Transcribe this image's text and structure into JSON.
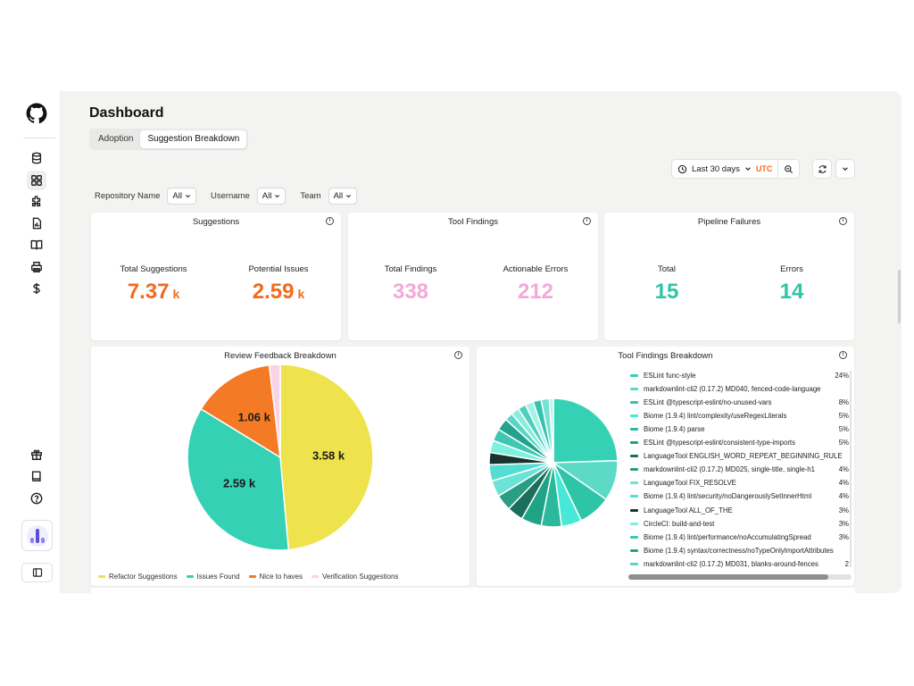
{
  "page": {
    "title": "Dashboard"
  },
  "tabs": [
    {
      "label": "Adoption",
      "active": false
    },
    {
      "label": "Suggestion Breakdown",
      "active": true
    }
  ],
  "toolbar": {
    "range_label": "Last 30 days",
    "timezone": "UTC"
  },
  "filters": [
    {
      "label": "Repository Name",
      "value": "All"
    },
    {
      "label": "Username",
      "value": "All"
    },
    {
      "label": "Team",
      "value": "All"
    }
  ],
  "sidebar": {
    "top_icons": [
      "database-icon",
      "dashboard-grid-icon",
      "puzzle-icon",
      "report-icon",
      "book-open-icon",
      "printer-icon",
      "dollar-icon"
    ],
    "bottom_icons": [
      "gift-icon",
      "book-icon",
      "help-icon"
    ]
  },
  "cards": {
    "suggestions": {
      "title": "Suggestions",
      "metrics": [
        {
          "label": "Total Suggestions",
          "value": "7.37",
          "unit": "k",
          "color": "#f26b1d"
        },
        {
          "label": "Potential Issues",
          "value": "2.59",
          "unit": "k",
          "color": "#f26b1d"
        }
      ]
    },
    "tool_findings": {
      "title": "Tool Findings",
      "metrics": [
        {
          "label": "Total Findings",
          "value": "338",
          "unit": "",
          "color": "#f5a8d8"
        },
        {
          "label": "Actionable Errors",
          "value": "212",
          "unit": "",
          "color": "#f5a8d8"
        }
      ]
    },
    "pipeline_failures": {
      "title": "Pipeline Failures",
      "metrics": [
        {
          "label": "Total",
          "value": "15",
          "unit": "",
          "color": "#2ec4a6"
        },
        {
          "label": "Errors",
          "value": "14",
          "unit": "",
          "color": "#2ec4a6"
        }
      ]
    },
    "review_feedback": {
      "title": "Review Feedback Breakdown"
    },
    "tool_breakdown": {
      "title": "Tool Findings Breakdown"
    }
  },
  "chart_data": [
    {
      "type": "pie",
      "title": "Review Feedback Breakdown",
      "slices": [
        {
          "name": "Refactor Suggestions",
          "value": 3580,
          "label": "3.58 k",
          "color": "#eee34c"
        },
        {
          "name": "Issues Found",
          "value": 2590,
          "label": "2.59 k",
          "color": "#35d1b4"
        },
        {
          "name": "Nice to haves",
          "value": 1060,
          "label": "1.06 k",
          "color": "#f47a25"
        },
        {
          "name": "Verification Suggestions",
          "value": 140,
          "label": "",
          "color": "#f9d3e6"
        }
      ],
      "legend": "bottom-left"
    },
    {
      "type": "pie",
      "title": "Tool Findings Breakdown",
      "legend": "right",
      "slices": [
        {
          "name": "ESLint func-style",
          "pct": "24%",
          "value": 24,
          "color": "#35d1b4"
        },
        {
          "name": "markdownlint-cli2 (0.17.2) MD040, fenced-code-language",
          "pct": "",
          "value": 10,
          "color": "#5cdac5"
        },
        {
          "name": "ESLint @typescript-eslint/no-unused-vars",
          "pct": "8%",
          "value": 8,
          "color": "#2ec4a6"
        },
        {
          "name": "Biome (1.9.4) lint/complexity/useRegexLiterals",
          "pct": "5%",
          "value": 5,
          "color": "#47e8d7"
        },
        {
          "name": "Biome (1.9.4) parse",
          "pct": "5%",
          "value": 5,
          "color": "#2bb89b"
        },
        {
          "name": "ESLint @typescript-eslint/consistent-type-imports",
          "pct": "5%",
          "value": 5,
          "color": "#1fa386"
        },
        {
          "name": "LanguageTool ENGLISH_WORD_REPEAT_BEGINNING_RULE",
          "pct": "",
          "value": 4,
          "color": "#1b6e5a"
        },
        {
          "name": "markdownlint-cli2 (0.17.2) MD025, single-title, single-h1",
          "pct": "4%",
          "value": 4,
          "color": "#2a9d85"
        },
        {
          "name": "LanguageTool FIX_RESOLVE",
          "pct": "4%",
          "value": 4,
          "color": "#6be3d6"
        },
        {
          "name": "Biome (1.9.4) lint/security/noDangerouslySetInnerHtml",
          "pct": "4%",
          "value": 4,
          "color": "#54ddd3"
        },
        {
          "name": "LanguageTool ALL_OF_THE",
          "pct": "3%",
          "value": 3,
          "color": "#17352f"
        },
        {
          "name": "CircleCI: build-and-test",
          "pct": "3%",
          "value": 3,
          "color": "#7ef0e0"
        },
        {
          "name": "Biome (1.9.4) lint/performance/noAccumulatingSpread",
          "pct": "3%",
          "value": 3,
          "color": "#3fc7b4"
        },
        {
          "name": "Biome (1.9.4) syntax/correctness/noTypeOnlyImportAttributes",
          "pct": "",
          "value": 3,
          "color": "#23a38d"
        },
        {
          "name": "markdownlint-cli2 (0.17.2) MD031, blanks-around-fences",
          "pct": "2",
          "value": 2,
          "color": "#58d6c5"
        },
        {
          "name": "",
          "pct": "",
          "value": 2,
          "color": "#8cecdc"
        },
        {
          "name": "",
          "pct": "",
          "value": 2,
          "color": "#4fcfbf"
        },
        {
          "name": "",
          "pct": "",
          "value": 2,
          "color": "#a4f1e6"
        },
        {
          "name": "",
          "pct": "",
          "value": 2,
          "color": "#36c2b0"
        },
        {
          "name": "",
          "pct": "",
          "value": 2,
          "color": "#75e2d3"
        },
        {
          "name": "",
          "pct": "",
          "value": 1,
          "color": "#b7f4ea"
        }
      ]
    }
  ]
}
